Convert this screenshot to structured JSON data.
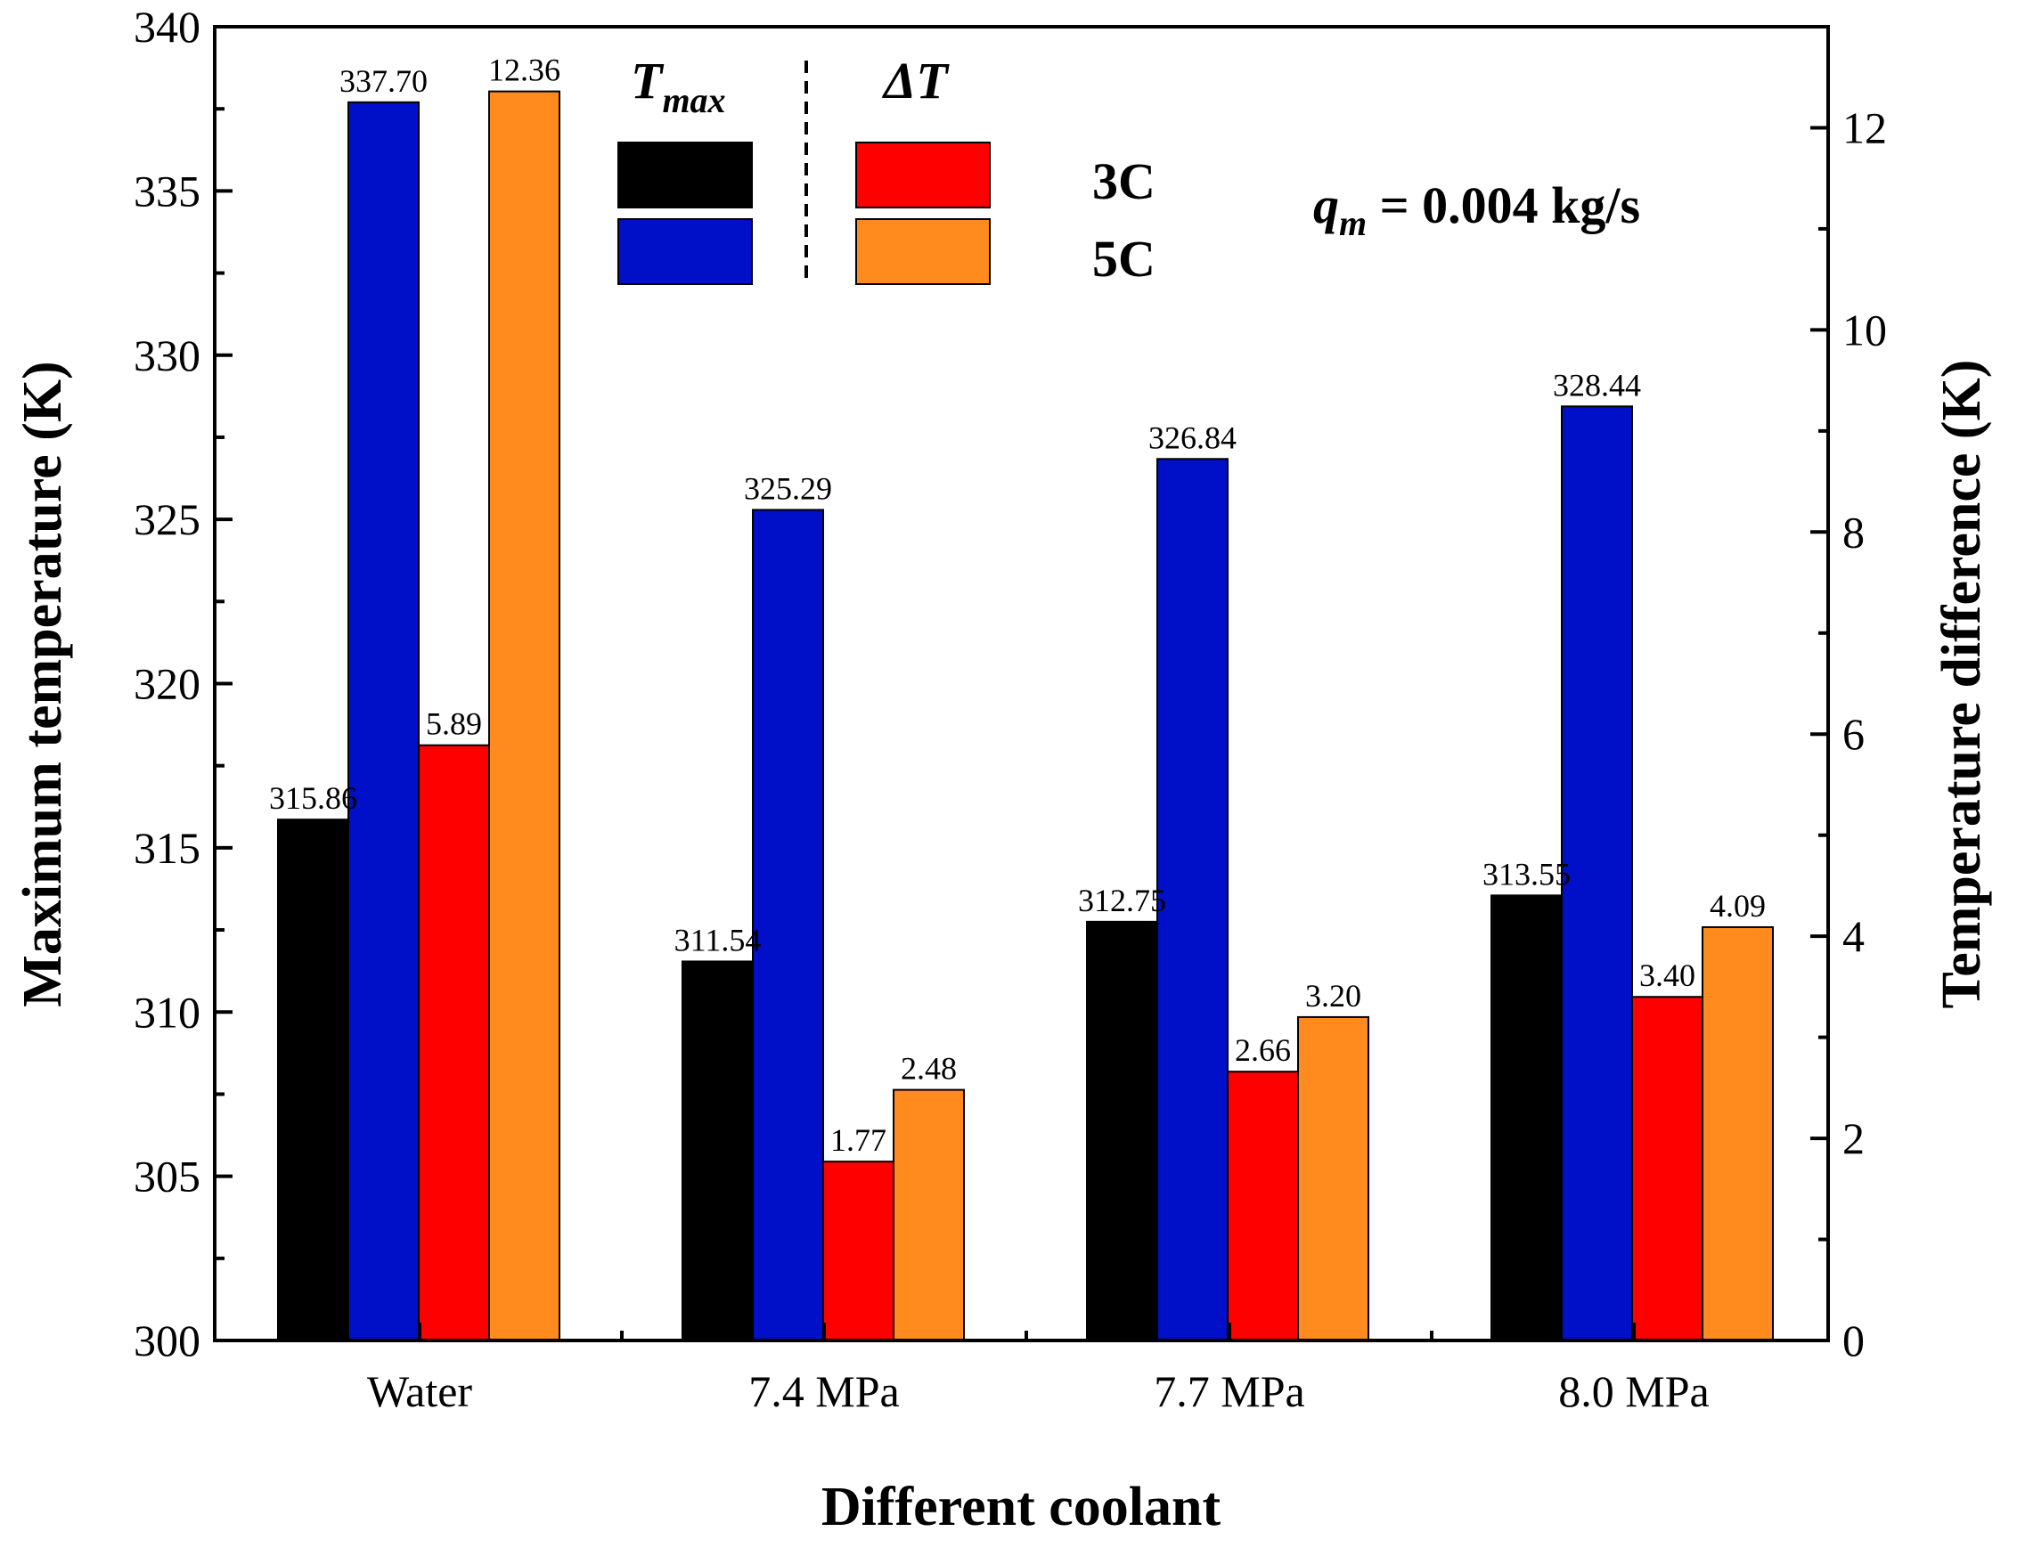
{
  "chart_data": {
    "type": "bar",
    "categories": [
      "Water",
      "7.4 MPa",
      "7.7 MPa",
      "8.0 MPa"
    ],
    "series": [
      {
        "name": "Tmax 3C",
        "axis": "left",
        "color": "#000000",
        "values": [
          315.86,
          311.54,
          312.75,
          313.55
        ],
        "labels": [
          "315.86",
          "311.54",
          "312.75",
          "313.55"
        ]
      },
      {
        "name": "Tmax 5C",
        "axis": "left",
        "color": "#0010c8",
        "values": [
          337.7,
          325.29,
          326.84,
          328.44
        ],
        "labels": [
          "337.70",
          "325.29",
          "326.84",
          "328.44"
        ]
      },
      {
        "name": "ΔT 3C",
        "axis": "right",
        "color": "#ff0000",
        "values": [
          5.89,
          1.77,
          2.66,
          3.4
        ],
        "labels": [
          "5.89",
          "1.77",
          "2.66",
          "3.40"
        ]
      },
      {
        "name": "ΔT 5C",
        "axis": "right",
        "color": "#ff8a1e",
        "values": [
          12.36,
          2.48,
          3.2,
          4.09
        ],
        "labels": [
          "12.36",
          "2.48",
          "3.20",
          "4.09"
        ]
      }
    ],
    "xlabel": "Different coolant",
    "ylabel": "Maximum temperature (K)",
    "ylabel_right": "Temperature difference (K)",
    "ylim": [
      300,
      340
    ],
    "ylim_right": [
      0,
      13
    ],
    "yticks": [
      "300",
      "305",
      "310",
      "315",
      "320",
      "325",
      "330",
      "335",
      "340"
    ],
    "yticks_right": [
      "0",
      "2",
      "4",
      "6",
      "8",
      "10",
      "12"
    ],
    "legend": {
      "col1_main": "T",
      "col1_sub": "max",
      "col2": "ΔT",
      "row1": "3C",
      "row2": "5C",
      "position": "top-center"
    },
    "annotation": {
      "main": "q",
      "sub": "m",
      "rest": " = 0.004 kg/s",
      "position": "top-right"
    }
  }
}
